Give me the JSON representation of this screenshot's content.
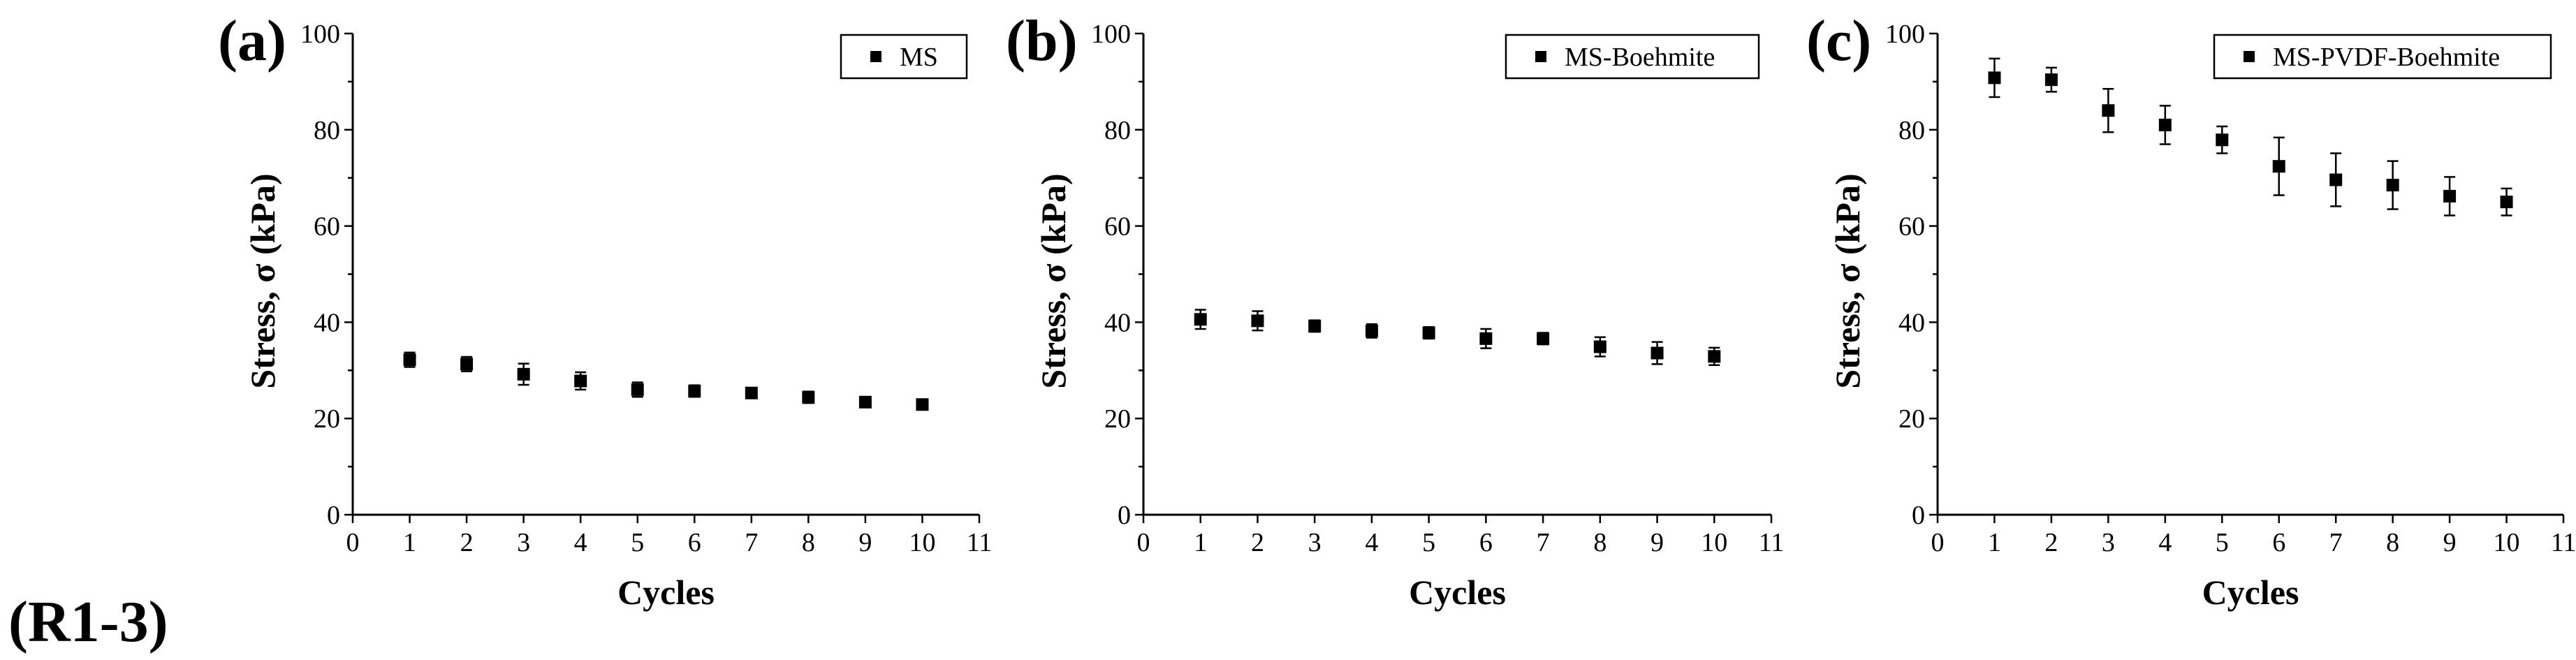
{
  "figure_label": "(R1-3)",
  "colors": {
    "marker": "#000000",
    "axis": "#000000",
    "background": "#ffffff"
  },
  "chart_data": [
    {
      "type": "scatter",
      "panel_label": "(a)",
      "legend": "MS",
      "legend_placement": "top-right",
      "xlabel": "Cycles",
      "ylabel": "Stress, σ (kPa)",
      "xlim": [
        0,
        11
      ],
      "ylim": [
        0,
        100
      ],
      "xticks": [
        "0",
        "1",
        "2",
        "3",
        "4",
        "5",
        "6",
        "7",
        "8",
        "9",
        "10",
        "11"
      ],
      "yticks": [
        "0",
        "20",
        "40",
        "60",
        "80",
        "100"
      ],
      "x": [
        1,
        2,
        3,
        4,
        5,
        6,
        7,
        8,
        9,
        10
      ],
      "y": [
        32.2,
        31.3,
        29.2,
        27.8,
        26.0,
        25.7,
        25.3,
        24.4,
        23.4,
        22.9
      ],
      "error": [
        1.5,
        1.5,
        2.2,
        1.8,
        1.5,
        1.2,
        0.8,
        1.2,
        0.8,
        0.8
      ],
      "grid": false
    },
    {
      "type": "scatter",
      "panel_label": "(b)",
      "legend": "MS-Boehmite",
      "legend_placement": "top-right",
      "xlabel": "Cycles",
      "ylabel": "Stress, σ (kPa)",
      "xlim": [
        0,
        11
      ],
      "ylim": [
        0,
        100
      ],
      "xticks": [
        "0",
        "1",
        "2",
        "3",
        "4",
        "5",
        "6",
        "7",
        "8",
        "9",
        "10",
        "11"
      ],
      "yticks": [
        "0",
        "20",
        "40",
        "60",
        "80",
        "100"
      ],
      "x": [
        1,
        2,
        3,
        4,
        5,
        6,
        7,
        8,
        9,
        10
      ],
      "y": [
        40.6,
        40.3,
        39.2,
        38.2,
        37.8,
        36.6,
        36.6,
        34.9,
        33.6,
        32.9
      ],
      "error": [
        2.0,
        2.0,
        1.2,
        1.4,
        1.2,
        2.0,
        1.2,
        2.0,
        2.3,
        1.8
      ],
      "grid": false
    },
    {
      "type": "scatter",
      "panel_label": "(c)",
      "legend": "MS-PVDF-Boehmite",
      "legend_placement": "top-right",
      "xlabel": "Cycles",
      "ylabel": "Stress, σ (kPa)",
      "xlim": [
        0,
        11
      ],
      "ylim": [
        0,
        100
      ],
      "xticks": [
        "0",
        "1",
        "2",
        "3",
        "4",
        "5",
        "6",
        "7",
        "8",
        "9",
        "10",
        "11"
      ],
      "yticks": [
        "0",
        "20",
        "40",
        "60",
        "80",
        "100"
      ],
      "x": [
        1,
        2,
        3,
        4,
        5,
        6,
        7,
        8,
        9,
        10
      ],
      "y": [
        90.8,
        90.4,
        84.0,
        81.0,
        77.9,
        72.4,
        69.6,
        68.5,
        66.2,
        65.0
      ],
      "error": [
        4.0,
        2.5,
        4.5,
        4.0,
        2.8,
        6.0,
        5.5,
        5.0,
        4.0,
        2.8
      ],
      "grid": false
    }
  ]
}
